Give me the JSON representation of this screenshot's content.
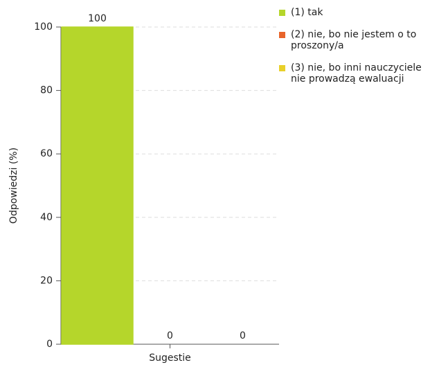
{
  "chart_data": {
    "type": "bar",
    "y_label": "Odpowiedzi (%)",
    "categories": [
      "Sugestie"
    ],
    "series": [
      {
        "name": "(1) tak",
        "color": "#b5d62b",
        "values": [
          100
        ]
      },
      {
        "name": "(2) nie, bo nie jestem o to proszony/a",
        "color": "#e8642a",
        "values": [
          0
        ]
      },
      {
        "name": "(3) nie, bo inni nauczyciele nie prowadzą ewaluacji",
        "color": "#e8d02a",
        "values": [
          0
        ]
      }
    ],
    "ylim": [
      0,
      100
    ],
    "yticks": [
      0,
      20,
      40,
      60,
      80,
      100
    ],
    "grid": true,
    "legend": "right"
  }
}
